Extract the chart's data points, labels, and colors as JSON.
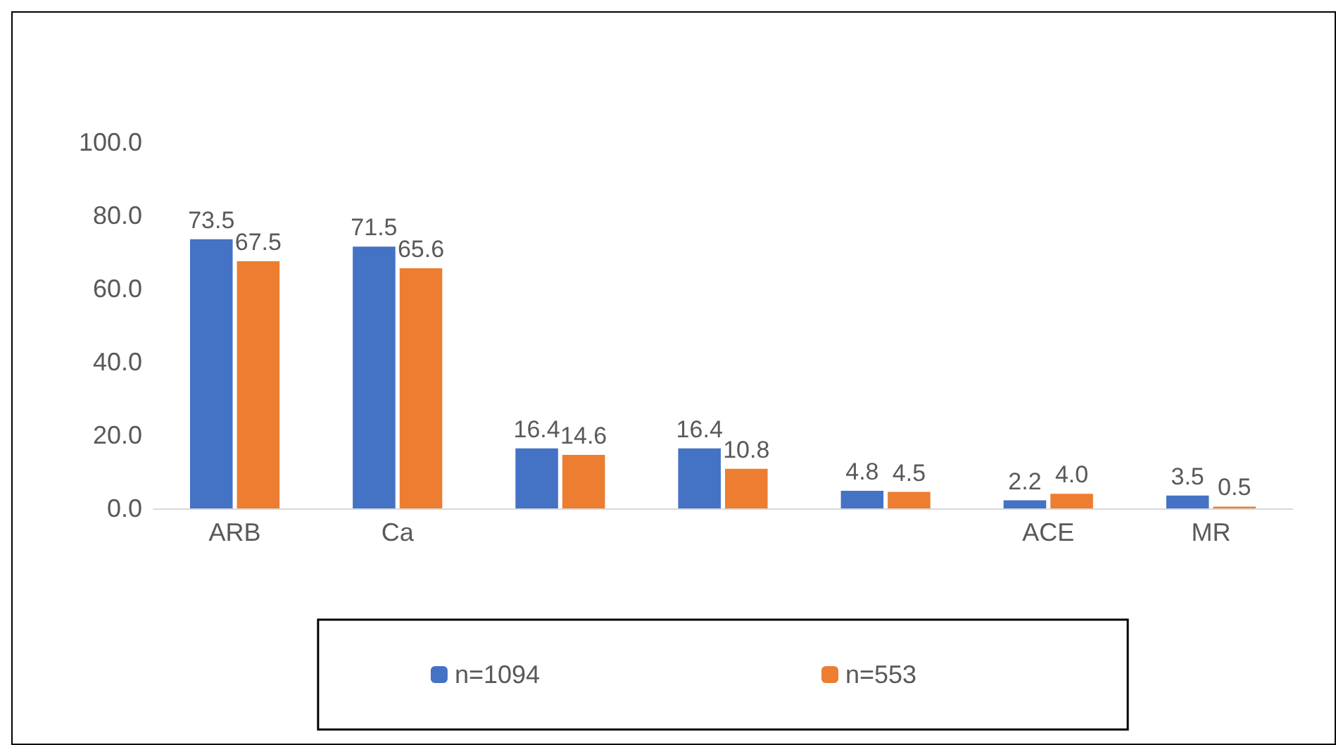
{
  "chart_data": {
    "type": "bar",
    "categories": [
      "ARB",
      "Ca",
      null,
      null,
      null,
      "ACE",
      "MR"
    ],
    "series": [
      {
        "name": "n=1094",
        "color": "#4472c4",
        "values": [
          73.5,
          71.5,
          16.4,
          16.4,
          4.8,
          2.2,
          3.5
        ]
      },
      {
        "name": "n=553",
        "color": "#ed7d31",
        "values": [
          67.5,
          65.6,
          14.6,
          10.8,
          4.5,
          4.0,
          0.5
        ],
        "value_labels": [
          "67.5",
          "65.6",
          "14.6",
          "10.8",
          "4.5",
          "4.0",
          "0.5"
        ]
      }
    ],
    "ylim": [
      0,
      100
    ],
    "yticks": [
      {
        "value": 0,
        "label": "0.0"
      },
      {
        "value": 20,
        "label": "20.0"
      },
      {
        "value": 40,
        "label": "40.0"
      },
      {
        "value": 60,
        "label": "60.0"
      },
      {
        "value": 80,
        "label": "80.0"
      },
      {
        "value": 100,
        "label": "100.0"
      }
    ],
    "data_labels": true,
    "grid": false,
    "legend": "bottom"
  }
}
